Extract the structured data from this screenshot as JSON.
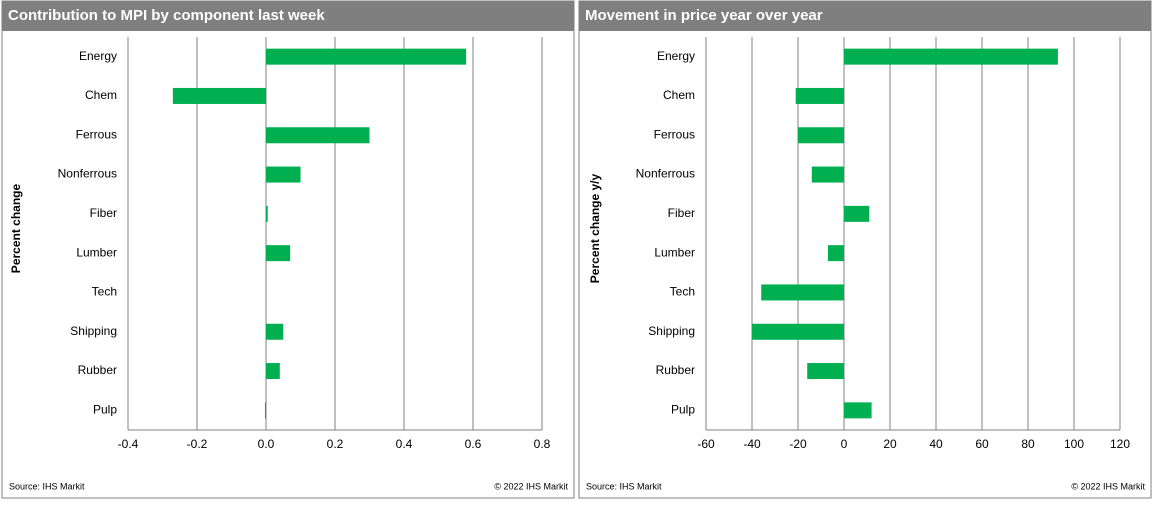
{
  "chart_data": [
    {
      "type": "bar",
      "orientation": "horizontal",
      "title": "Contribution to MPI by component last week",
      "y_label": "Percent change",
      "source": "Source:  IHS Markit",
      "copyright": "© 2022  IHS Markit",
      "categories": [
        "Energy",
        "Chem",
        "Ferrous",
        "Nonferrous",
        "Fiber",
        "Lumber",
        "Tech",
        "Shipping",
        "Rubber",
        "Pulp"
      ],
      "values": [
        0.58,
        -0.27,
        0.3,
        0.1,
        0.005,
        0.07,
        0,
        0.05,
        0.04,
        -0.003
      ],
      "color": "#00b050",
      "xlim": [
        -0.4,
        0.8
      ],
      "xticks": [
        -0.4,
        -0.2,
        {
          "value": 0,
          "label": "0.0"
        },
        0.2,
        0.4,
        0.6,
        0.8
      ],
      "grid": true
    },
    {
      "type": "bar",
      "orientation": "horizontal",
      "title": "Movement in price year over year",
      "y_label": "Percent change y/y",
      "source": "Source:  IHS Markit",
      "copyright": "© 2022  IHS Markit",
      "categories": [
        "Energy",
        "Chem",
        "Ferrous",
        "Nonferrous",
        "Fiber",
        "Lumber",
        "Tech",
        "Shipping",
        "Rubber",
        "Pulp"
      ],
      "values": [
        93,
        -21,
        -20,
        -14,
        11,
        -7,
        -36,
        -40,
        -16,
        12
      ],
      "color": "#00b050",
      "xlim": [
        -60,
        120
      ],
      "xticks": [
        -60,
        -40,
        -20,
        0,
        20,
        40,
        60,
        80,
        100,
        120
      ],
      "grid": true
    }
  ]
}
